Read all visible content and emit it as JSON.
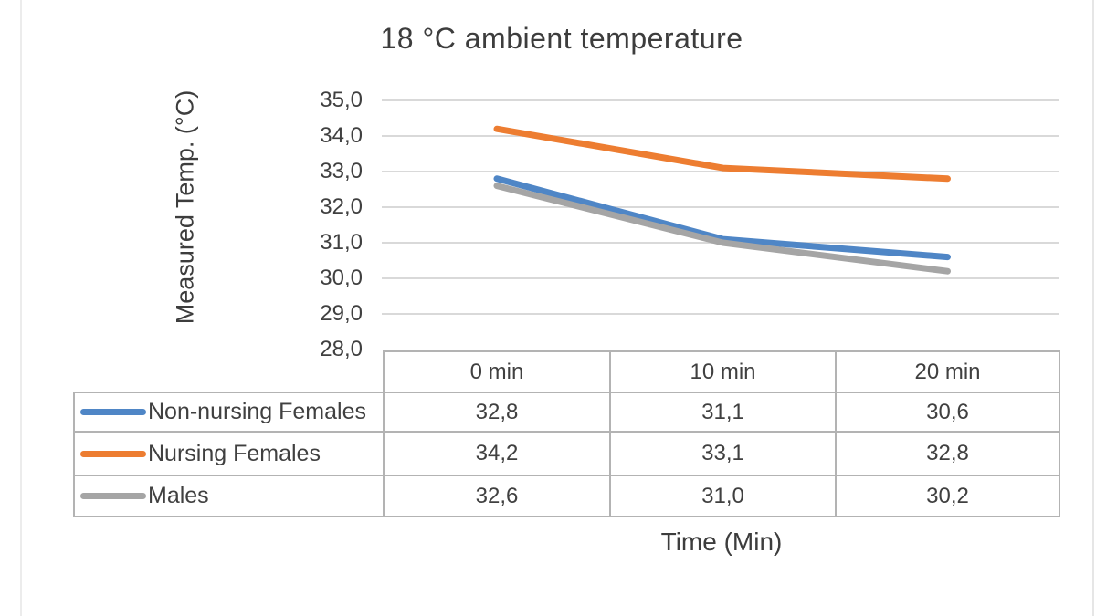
{
  "chart_data": {
    "type": "line",
    "title": "18 °C ambient temperature",
    "xlabel": "Time (Min)",
    "ylabel": "Measured Temp. (°C)",
    "categories": [
      "0 min",
      "10 min",
      "20 min"
    ],
    "series": [
      {
        "name": "Non-nursing Females",
        "color": "#4F86C6",
        "values": [
          32.8,
          31.1,
          30.6
        ],
        "display": [
          "32,8",
          "31,1",
          "30,6"
        ]
      },
      {
        "name": "Nursing Females",
        "color": "#ED7D31",
        "values": [
          34.2,
          33.1,
          32.8
        ],
        "display": [
          "34,2",
          "33,1",
          "32,8"
        ]
      },
      {
        "name": "Males",
        "color": "#A5A5A5",
        "values": [
          32.6,
          31.0,
          30.2
        ],
        "display": [
          "32,6",
          "31,0",
          "30,2"
        ]
      }
    ],
    "ylim": [
      28.0,
      35.0
    ],
    "ytick_labels": [
      "35,0",
      "34,0",
      "33,0",
      "32,0",
      "31,0",
      "30,0",
      "29,0",
      "28,0"
    ],
    "grid": "horizontal",
    "legend_position": "table-left",
    "colors": {
      "gridline": "#d9d9d9",
      "table_border": "#b3b3b3",
      "text": "#404040"
    }
  }
}
